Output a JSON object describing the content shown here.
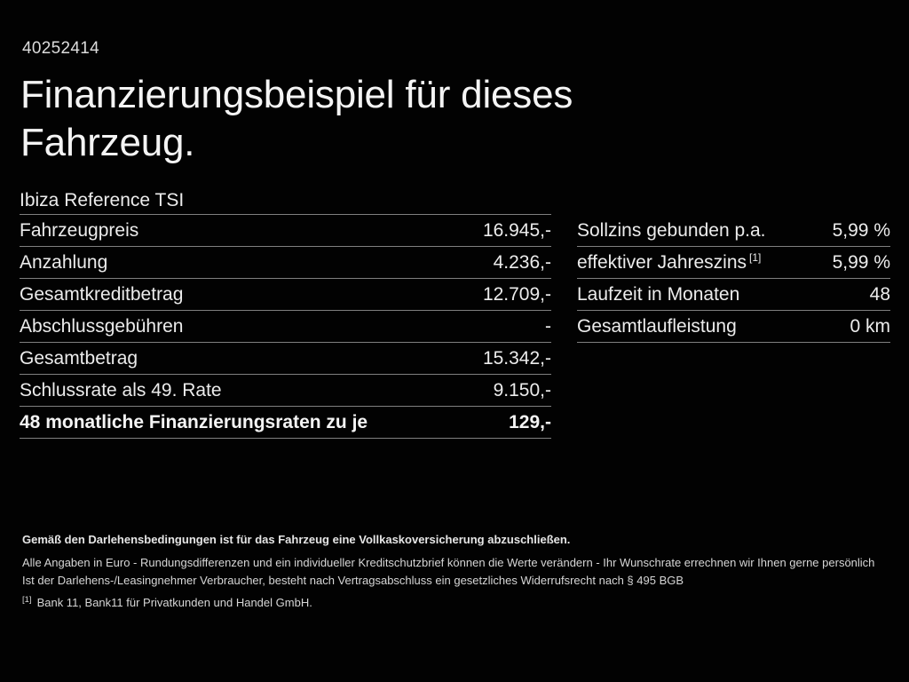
{
  "header": {
    "vehicle_id": "40252414",
    "title_line1": "Finanzierungsbeispiel für dieses",
    "title_line2": "Fahrzeug."
  },
  "finance_table": {
    "model": "Ibiza Reference TSI",
    "rows": [
      {
        "label": "Fahrzeugpreis",
        "value": "16.945,-"
      },
      {
        "label": "Anzahlung",
        "value": "4.236,-"
      },
      {
        "label": "Gesamtkreditbetrag",
        "value": "12.709,-"
      },
      {
        "label": "Abschlussgebühren",
        "value": "-"
      },
      {
        "label": "Gesamtbetrag",
        "value": "15.342,-"
      },
      {
        "label": "Schlussrate als 49. Rate",
        "value": "9.150,-"
      },
      {
        "label": "48 monatliche Finanzierungsraten zu je",
        "value": "129,-"
      }
    ]
  },
  "conditions_table": {
    "rows": [
      {
        "label": "Sollzins gebunden p.a.",
        "value": "5,99 %"
      },
      {
        "label": "effektiver Jahreszins",
        "sup": "[1]",
        "value": "5,99 %"
      },
      {
        "label": "Laufzeit in Monaten",
        "value": "48"
      },
      {
        "label": "Gesamtlaufleistung",
        "value": "0 km"
      }
    ]
  },
  "footer": {
    "insurance_note": "Gemäß den Darlehensbedingungen ist für das Fahrzeug eine Vollkaskoversicherung abzuschließen.",
    "disclaimer_line1": "Alle Angaben in Euro - Rundungsdifferenzen und ein individueller Kreditschutzbrief können die Werte verändern - Ihr Wunschrate errechnen wir Ihnen gerne persönlich",
    "disclaimer_line2": "Ist der Darlehens-/Leasingnehmer Verbraucher, besteht nach Vertragsabschluss ein gesetzliches Widerrufsrecht nach § 495 BGB",
    "footnote_marker": "[1]",
    "footnote_text": "Bank 11, Bank11 für Privatkunden und Handel GmbH."
  },
  "colors": {
    "background": "#000000",
    "text": "#ececec",
    "divider": "#7f7f7f",
    "footer_text": "#d6d6d6"
  }
}
